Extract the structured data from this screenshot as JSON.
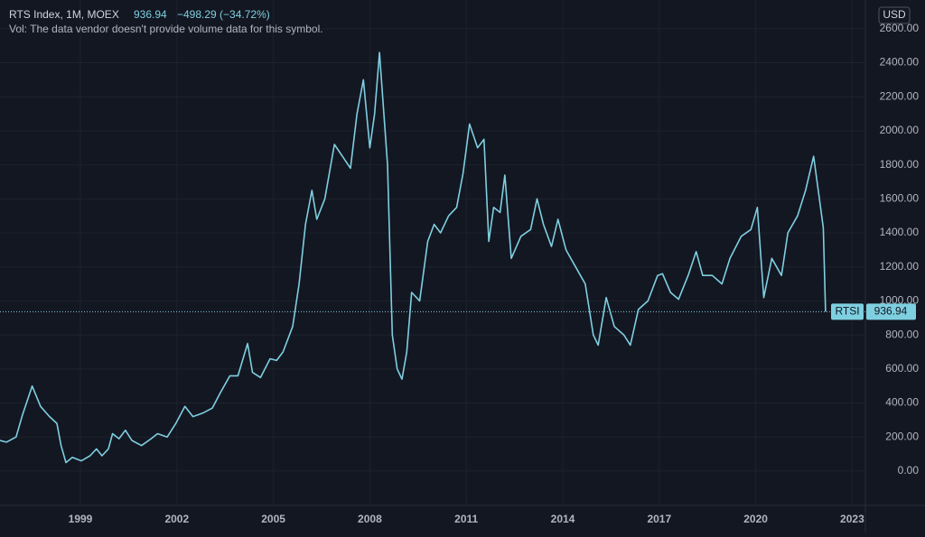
{
  "chart_data": {
    "type": "line",
    "title": "RTS Index, 1M, MOEX",
    "last_price": {
      "value": 936.94,
      "label": "936.94"
    },
    "change": "−498.29 (−34.72%)",
    "subtitle": "Vol: The data vendor doesn't provide volume data for this symbol.",
    "currency": "USD",
    "symbol": "RTSI",
    "color": "#7ecfe0",
    "grid": true,
    "xlim": [
      1996.5,
      2023.41
    ],
    "ylim": [
      -202,
      2769
    ],
    "xticks": [
      1999,
      2002,
      2005,
      2008,
      2011,
      2014,
      2017,
      2020,
      2023
    ],
    "yticks": [
      {
        "value": 0,
        "label": "0.00"
      },
      {
        "value": 200,
        "label": "200.00"
      },
      {
        "value": 400,
        "label": "400.00"
      },
      {
        "value": 600,
        "label": "600.00"
      },
      {
        "value": 800,
        "label": "800.00"
      },
      {
        "value": 1000,
        "label": "1000.00"
      },
      {
        "value": 1200,
        "label": "1200.00"
      },
      {
        "value": 1400,
        "label": "1400.00"
      },
      {
        "value": 1600,
        "label": "1600.00"
      },
      {
        "value": 1800,
        "label": "1800.00"
      },
      {
        "value": 2000,
        "label": "2000.00"
      },
      {
        "value": 2200,
        "label": "2200.00"
      },
      {
        "value": 2400,
        "label": "2400.00"
      },
      {
        "value": 2600,
        "label": "2600.00"
      }
    ],
    "series": [
      {
        "name": "RTSI",
        "color": "#7ecfe0",
        "x": [
          1996.5,
          1996.7,
          1997.0,
          1997.2,
          1997.5,
          1997.76,
          1998.04,
          1998.27,
          1998.4,
          1998.55,
          1998.75,
          1999.03,
          1999.3,
          1999.5,
          1999.67,
          1999.87,
          2000.0,
          2000.2,
          2000.4,
          2000.6,
          2000.9,
          2001.2,
          2001.4,
          2001.7,
          2001.97,
          2002.25,
          2002.5,
          2002.8,
          2003.1,
          2003.35,
          2003.65,
          2003.9,
          2004.2,
          2004.35,
          2004.6,
          2004.9,
          2005.1,
          2005.3,
          2005.6,
          2005.8,
          2006.0,
          2006.2,
          2006.35,
          2006.6,
          2006.9,
          2007.15,
          2007.4,
          2007.6,
          2007.8,
          2008.0,
          2008.15,
          2008.3,
          2008.55,
          2008.7,
          2008.85,
          2009.0,
          2009.15,
          2009.3,
          2009.55,
          2009.8,
          2010.0,
          2010.2,
          2010.45,
          2010.7,
          2010.9,
          2011.1,
          2011.35,
          2011.55,
          2011.7,
          2011.85,
          2012.05,
          2012.2,
          2012.4,
          2012.7,
          2013.0,
          2013.2,
          2013.4,
          2013.65,
          2013.85,
          2014.1,
          2014.4,
          2014.7,
          2014.95,
          2015.1,
          2015.35,
          2015.6,
          2015.9,
          2016.1,
          2016.35,
          2016.65,
          2016.95,
          2017.1,
          2017.35,
          2017.6,
          2017.9,
          2018.15,
          2018.35,
          2018.65,
          2018.95,
          2019.2,
          2019.55,
          2019.85,
          2020.05,
          2020.25,
          2020.5,
          2020.8,
          2021.0,
          2021.3,
          2021.55,
          2021.8,
          2021.98,
          2022.1,
          2022.17
        ],
        "values": [
          180,
          170,
          200,
          330,
          500,
          380,
          320,
          280,
          150,
          50,
          80,
          60,
          90,
          130,
          90,
          130,
          220,
          190,
          240,
          180,
          150,
          190,
          220,
          200,
          280,
          380,
          320,
          340,
          370,
          460,
          560,
          560,
          750,
          580,
          550,
          660,
          650,
          700,
          850,
          1100,
          1450,
          1650,
          1480,
          1600,
          1920,
          1850,
          1780,
          2100,
          2300,
          1900,
          2100,
          2460,
          1800,
          800,
          600,
          540,
          700,
          1050,
          1000,
          1350,
          1450,
          1400,
          1500,
          1550,
          1750,
          2040,
          1900,
          1950,
          1350,
          1550,
          1520,
          1740,
          1250,
          1380,
          1420,
          1600,
          1450,
          1320,
          1480,
          1300,
          1200,
          1100,
          800,
          740,
          1020,
          850,
          800,
          740,
          950,
          1000,
          1150,
          1160,
          1050,
          1010,
          1150,
          1290,
          1150,
          1150,
          1100,
          1250,
          1380,
          1420,
          1550,
          1020,
          1250,
          1150,
          1400,
          1500,
          1650,
          1850,
          1600,
          1430,
          936.94
        ]
      }
    ]
  }
}
